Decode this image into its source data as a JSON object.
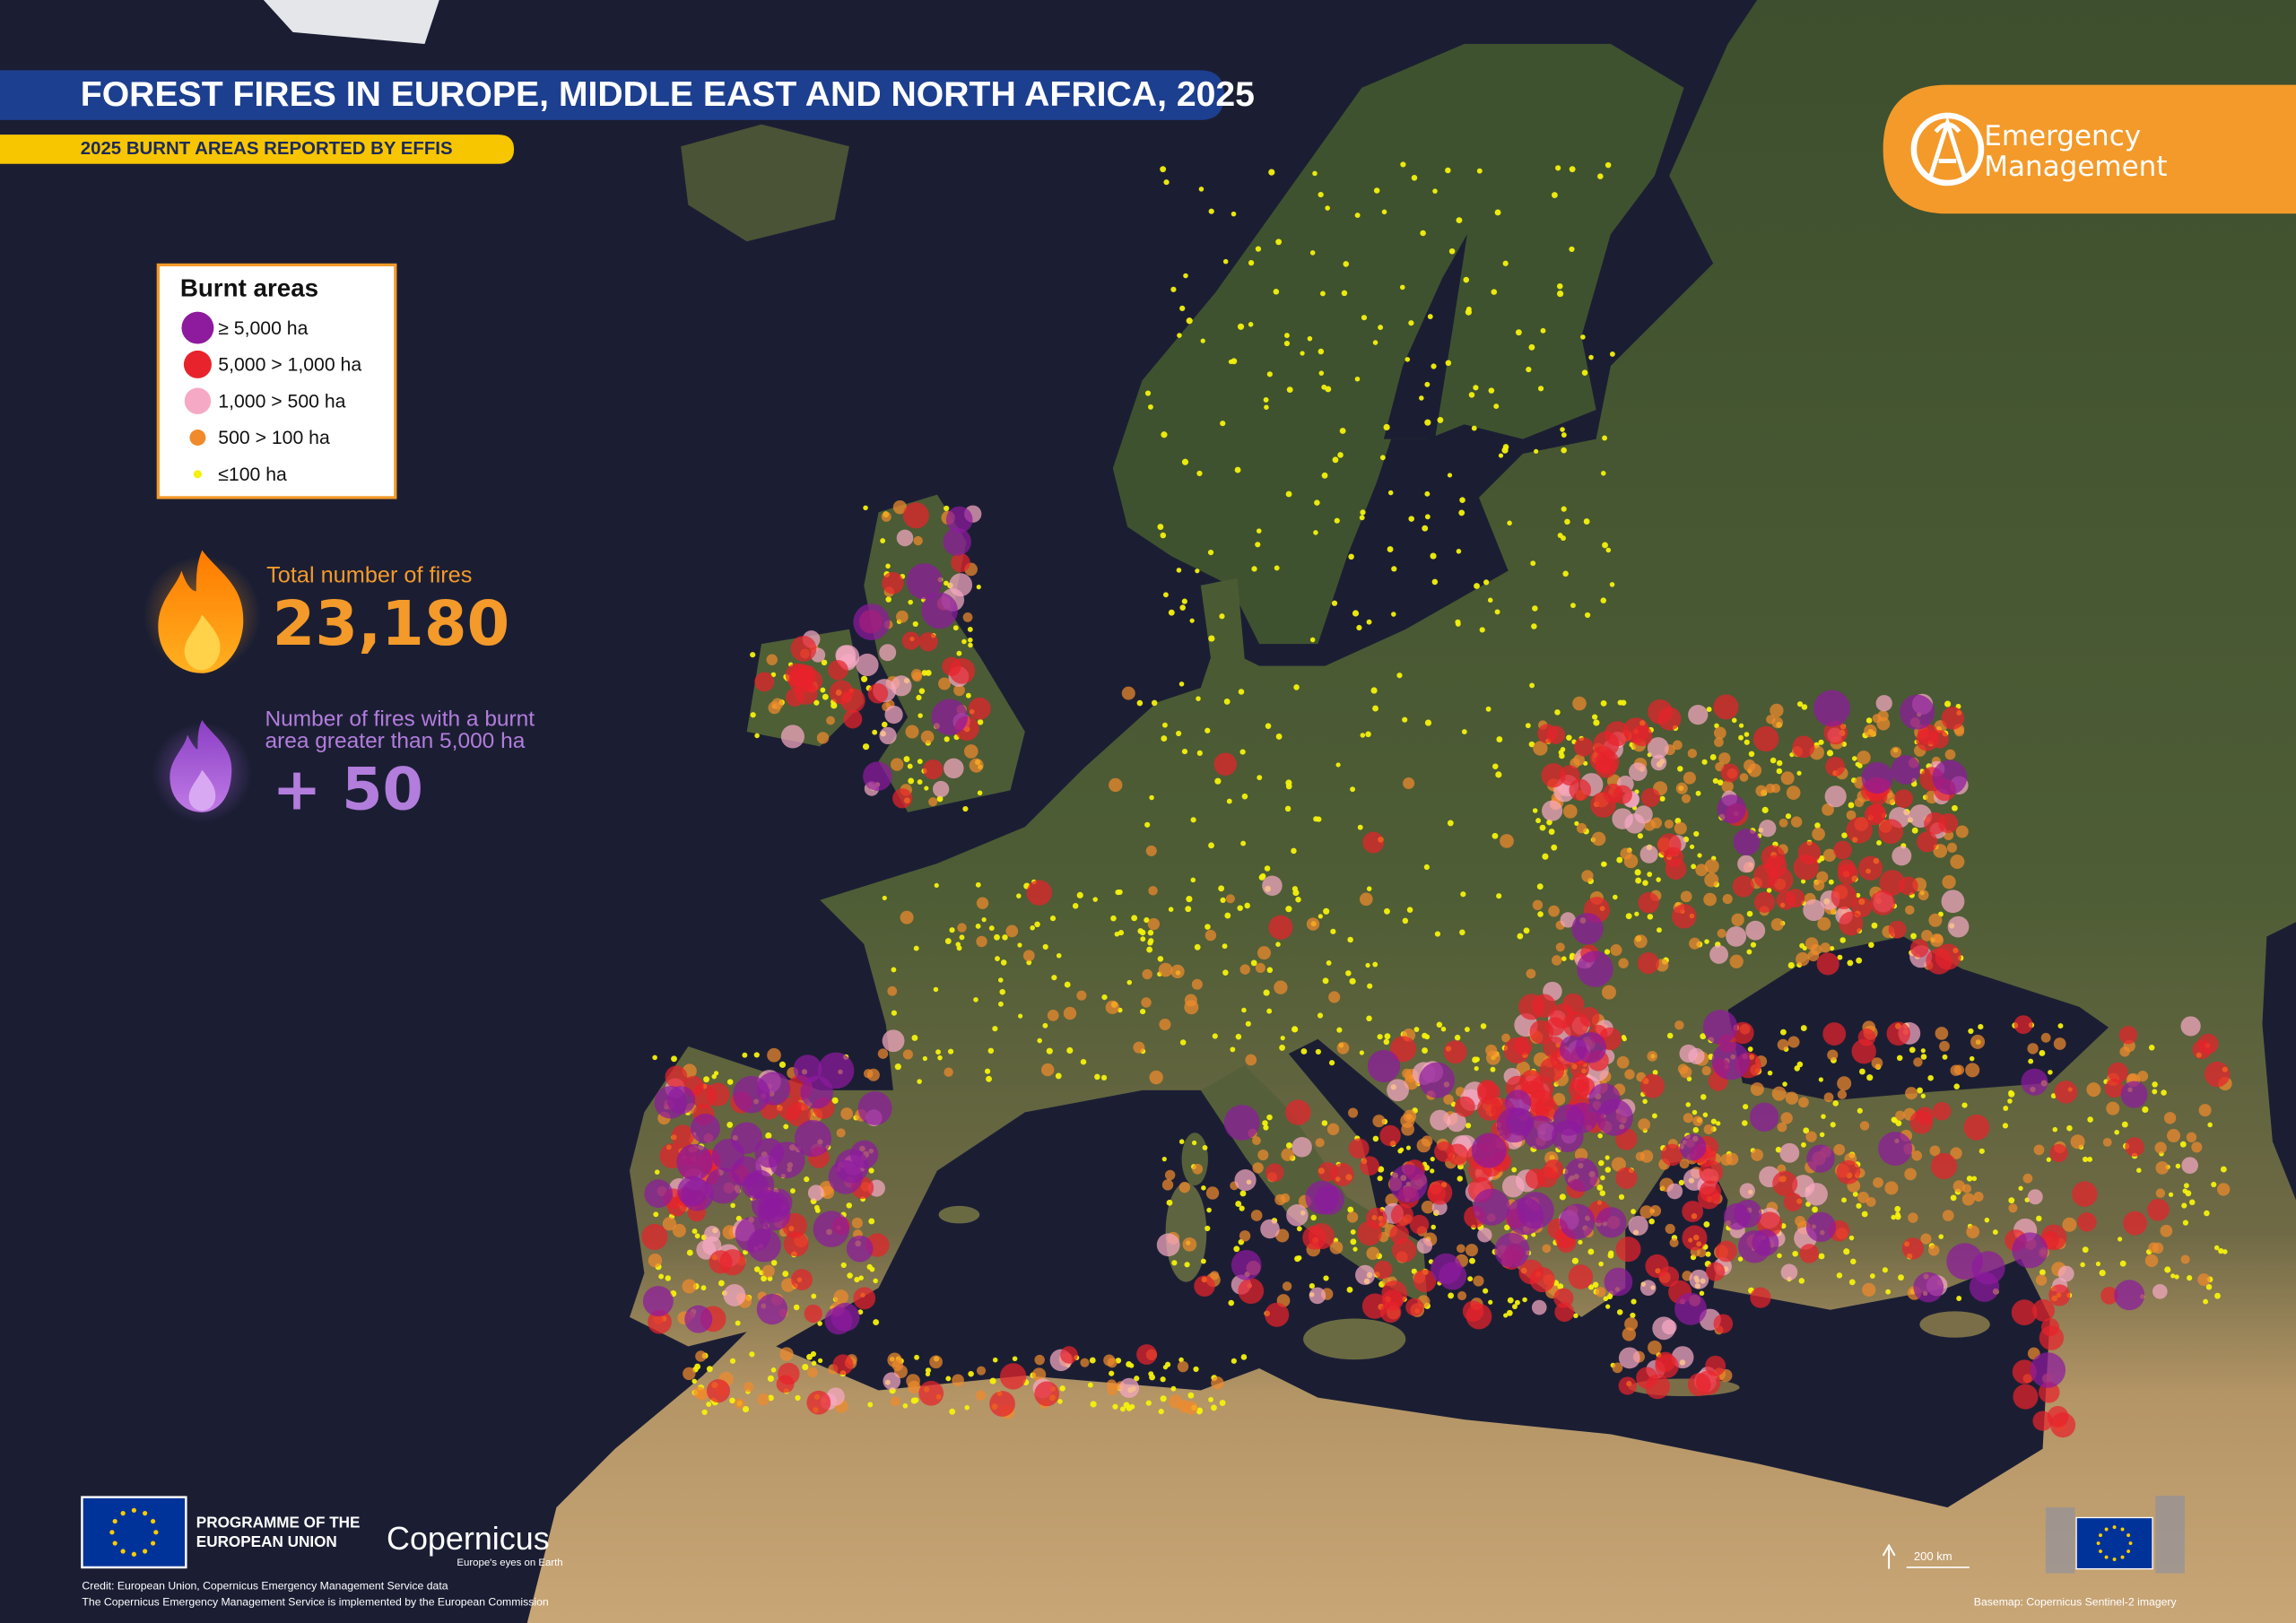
{
  "header": {
    "title": "FOREST FIRES IN EUROPE, MIDDLE EAST AND NORTH AFRICA, 2025",
    "subtitle": "2025 BURNT AREAS REPORTED BY EFFIS"
  },
  "logo": {
    "lines": [
      "Emergency",
      "Management"
    ]
  },
  "legend": {
    "title": "Burnt areas",
    "items": [
      {
        "label": "≥ 5,000 ha",
        "color": "#8e1a9e"
      },
      {
        "label": "5,000 > 1,000 ha",
        "color": "#e8232b"
      },
      {
        "label": "1,000 > 500 ha",
        "color": "#f6a9c4"
      },
      {
        "label": "500 > 100 ha",
        "color": "#f08a2c"
      },
      {
        "label": "≤100 ha",
        "color": "#f4f10c"
      }
    ]
  },
  "stats": {
    "total": {
      "label": "Total number of fires",
      "value": "23,180"
    },
    "large": {
      "lines": [
        "Number of fires with a burnt",
        "area greater than 5,000 ha"
      ],
      "value": "+ 50"
    }
  },
  "footer": {
    "programme": [
      "PROGRAMME OF THE",
      "EUROPEAN UNION"
    ],
    "copernicus": {
      "name": "Copernicus",
      "tagline": "Europe's eyes on Earth"
    },
    "credits": [
      "Credit: European Union, Copernicus Emergency Management Service data",
      "The Copernicus Emergency Management Service is implemented by the European Commission"
    ],
    "scale": "200 km",
    "basemap": "Basemap: Copernicus Sentinel-2 imagery"
  }
}
